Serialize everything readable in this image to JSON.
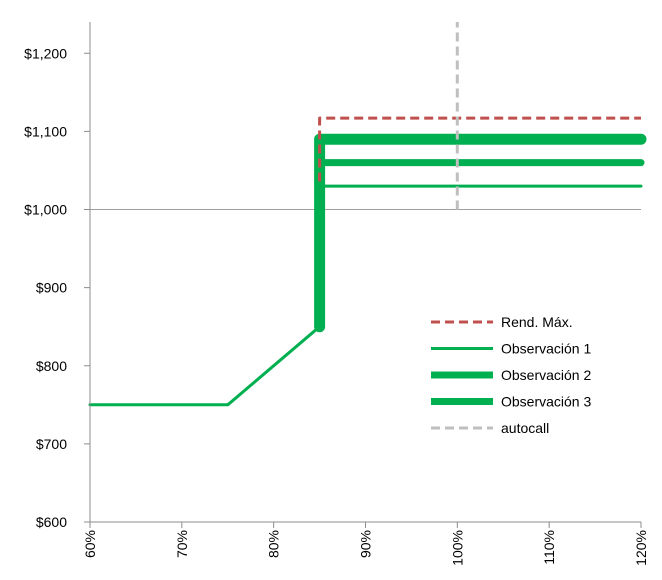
{
  "chart_data": {
    "type": "line",
    "x_ticks": [
      "60%",
      "70%",
      "80%",
      "90%",
      "100%",
      "110%",
      "120%"
    ],
    "y_ticks": [
      "$600",
      "$700",
      "$800",
      "$900",
      "$1,000",
      "$1,100",
      "$1,200"
    ],
    "xlim": [
      60,
      120
    ],
    "ylim": [
      600,
      1240
    ],
    "reference_line_y": 1000,
    "series": [
      {
        "name": "Rend. Máx.",
        "color": "#c0504d",
        "style": "dashed",
        "width": "thin",
        "points": [
          [
            85,
            1000
          ],
          [
            85,
            1117
          ],
          [
            120,
            1117
          ]
        ]
      },
      {
        "name": "Observación 1",
        "color": "#00b050",
        "style": "solid",
        "width": "thin",
        "points": [
          [
            60,
            750
          ],
          [
            75,
            750
          ],
          [
            85,
            850
          ],
          [
            85,
            1030
          ],
          [
            120,
            1030
          ]
        ]
      },
      {
        "name": "Observación 2",
        "color": "#00b050",
        "style": "solid",
        "width": "medium",
        "points": [
          [
            85,
            850
          ],
          [
            85,
            1060
          ],
          [
            120,
            1060
          ]
        ]
      },
      {
        "name": "Observación 3",
        "color": "#00b050",
        "style": "solid",
        "width": "thick",
        "points": [
          [
            85,
            850
          ],
          [
            85,
            1090
          ],
          [
            120,
            1090
          ]
        ]
      },
      {
        "name": "autocall",
        "color": "#bfbfbf",
        "style": "dashed",
        "width": "thin",
        "points": [
          [
            100,
            1000
          ],
          [
            100,
            1240
          ]
        ]
      }
    ],
    "legend_position": "center-right",
    "grid": false
  }
}
